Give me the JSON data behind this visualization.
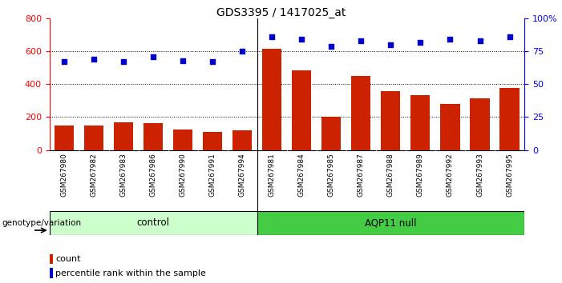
{
  "title": "GDS3395 / 1417025_at",
  "categories": [
    "GSM267980",
    "GSM267982",
    "GSM267983",
    "GSM267986",
    "GSM267990",
    "GSM267991",
    "GSM267994",
    "GSM267981",
    "GSM267984",
    "GSM267985",
    "GSM267987",
    "GSM267988",
    "GSM267989",
    "GSM267992",
    "GSM267993",
    "GSM267995"
  ],
  "bar_values": [
    150,
    148,
    170,
    165,
    125,
    110,
    120,
    615,
    485,
    200,
    450,
    360,
    335,
    280,
    315,
    375
  ],
  "percentile_values": [
    67,
    69,
    67,
    71,
    68,
    67,
    75,
    86,
    84,
    79,
    83,
    80,
    82,
    84,
    83,
    86
  ],
  "bar_color": "#cc2200",
  "dot_color": "#0000cc",
  "ylim_left": [
    0,
    800
  ],
  "ylim_right": [
    0,
    100
  ],
  "yticks_left": [
    0,
    200,
    400,
    600,
    800
  ],
  "yticks_right": [
    0,
    25,
    50,
    75,
    100
  ],
  "ytick_right_labels": [
    "0",
    "25",
    "50",
    "75",
    "100%"
  ],
  "control_label": "control",
  "aqp_label": "AQP11 null",
  "control_count": 7,
  "aqp_count": 9,
  "genotype_label": "genotype/variation",
  "legend_count_label": "count",
  "legend_pct_label": "percentile rank within the sample",
  "control_color": "#ccffcc",
  "aqp_color": "#44cc44",
  "xtick_bg": "#cccccc",
  "grid_lines_at": [
    200,
    400,
    600
  ]
}
